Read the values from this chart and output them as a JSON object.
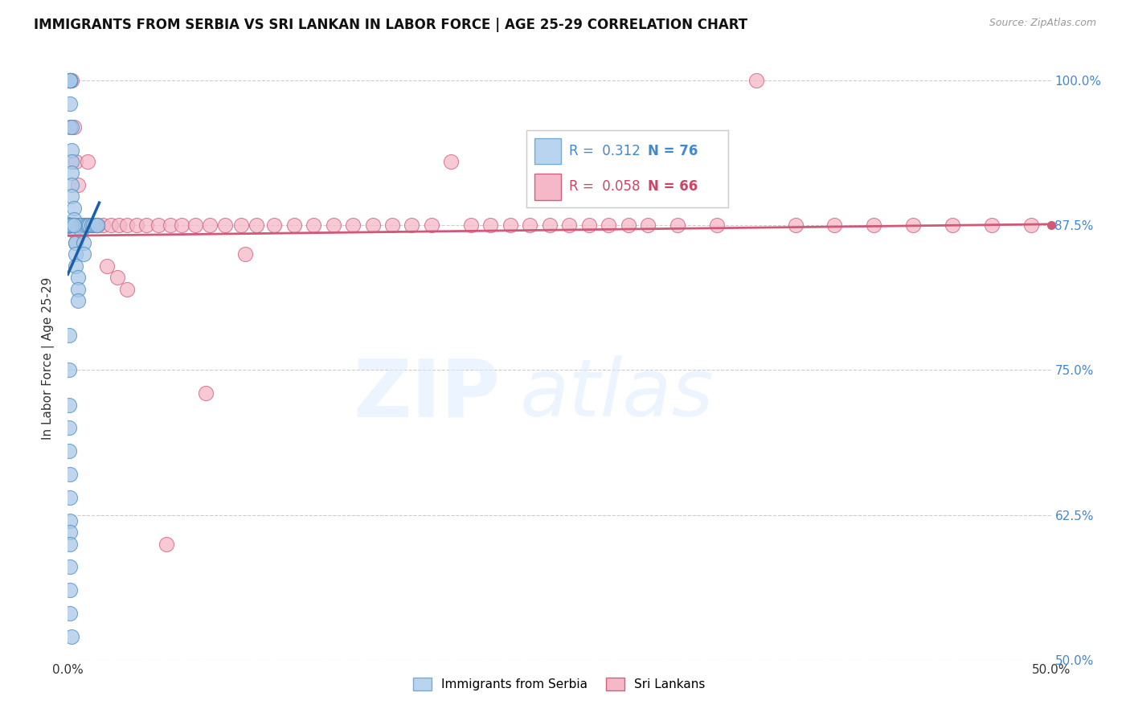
{
  "title": "IMMIGRANTS FROM SERBIA VS SRI LANKAN IN LABOR FORCE | AGE 25-29 CORRELATION CHART",
  "source": "Source: ZipAtlas.com",
  "ylabel": "In Labor Force | Age 25-29",
  "x_min": 0.0,
  "x_max": 0.5,
  "y_min": 0.5,
  "y_max": 1.02,
  "y_ticks": [
    0.5,
    0.625,
    0.75,
    0.875,
    1.0
  ],
  "y_tick_labels": [
    "50.0%",
    "62.5%",
    "75.0%",
    "87.5%",
    "100.0%"
  ],
  "serbia_color": "#a8c8e8",
  "srilanka_color": "#f4b8c8",
  "serbia_edge": "#5090c0",
  "srilanka_edge": "#d06080",
  "trend_serbia_color": "#1a5fa8",
  "trend_srilanka_color": "#d05878",
  "serbia_N": 76,
  "srilanka_N": 66,
  "serbia_R": 0.312,
  "srilanka_R": 0.058,
  "serbia_x": [
    0.001,
    0.001,
    0.001,
    0.001,
    0.001,
    0.001,
    0.001,
    0.001,
    0.002,
    0.002,
    0.002,
    0.002,
    0.002,
    0.002,
    0.003,
    0.003,
    0.003,
    0.003,
    0.003,
    0.004,
    0.004,
    0.004,
    0.004,
    0.005,
    0.005,
    0.005,
    0.006,
    0.006,
    0.007,
    0.007,
    0.008,
    0.008,
    0.009,
    0.01,
    0.01,
    0.011,
    0.012,
    0.013,
    0.014,
    0.015,
    0.0005,
    0.0005,
    0.0005,
    0.0005,
    0.0005,
    0.0005,
    0.0005,
    0.0005,
    0.0005,
    0.0005,
    0.0005,
    0.0005,
    0.0005,
    0.0005,
    0.0005,
    0.0005,
    0.0005,
    0.0005,
    0.0005,
    0.0005,
    0.0005,
    0.0005,
    0.0005,
    0.0005,
    0.0005,
    0.001,
    0.001,
    0.001,
    0.001,
    0.001,
    0.001,
    0.001,
    0.001,
    0.002,
    0.002,
    0.003
  ],
  "serbia_y": [
    1.0,
    1.0,
    1.0,
    1.0,
    1.0,
    1.0,
    0.98,
    0.96,
    0.96,
    0.94,
    0.93,
    0.92,
    0.91,
    0.9,
    0.89,
    0.88,
    0.875,
    0.875,
    0.87,
    0.86,
    0.86,
    0.85,
    0.84,
    0.83,
    0.82,
    0.81,
    0.875,
    0.875,
    0.875,
    0.87,
    0.86,
    0.85,
    0.875,
    0.875,
    0.875,
    0.875,
    0.875,
    0.875,
    0.875,
    0.875,
    0.875,
    0.875,
    0.875,
    0.875,
    0.875,
    0.875,
    0.875,
    0.875,
    0.875,
    0.875,
    0.875,
    0.875,
    0.875,
    0.875,
    0.875,
    0.875,
    0.875,
    0.875,
    0.875,
    0.875,
    0.78,
    0.75,
    0.72,
    0.7,
    0.68,
    0.66,
    0.64,
    0.62,
    0.61,
    0.6,
    0.58,
    0.56,
    0.54,
    0.52,
    0.875,
    0.875
  ],
  "srilanka_x": [
    0.001,
    0.002,
    0.003,
    0.004,
    0.005,
    0.006,
    0.007,
    0.008,
    0.01,
    0.012,
    0.015,
    0.018,
    0.022,
    0.026,
    0.03,
    0.035,
    0.04,
    0.046,
    0.052,
    0.058,
    0.065,
    0.072,
    0.08,
    0.088,
    0.096,
    0.105,
    0.115,
    0.125,
    0.135,
    0.145,
    0.155,
    0.165,
    0.175,
    0.185,
    0.195,
    0.205,
    0.215,
    0.225,
    0.235,
    0.245,
    0.255,
    0.265,
    0.275,
    0.285,
    0.295,
    0.31,
    0.33,
    0.35,
    0.37,
    0.39,
    0.41,
    0.43,
    0.45,
    0.47,
    0.49,
    0.006,
    0.008,
    0.01,
    0.012,
    0.015,
    0.02,
    0.025,
    0.03,
    0.05,
    0.07,
    0.09
  ],
  "srilanka_y": [
    1.0,
    1.0,
    0.96,
    0.93,
    0.91,
    0.875,
    0.875,
    0.875,
    0.875,
    0.875,
    0.875,
    0.875,
    0.875,
    0.875,
    0.875,
    0.875,
    0.875,
    0.875,
    0.875,
    0.875,
    0.875,
    0.875,
    0.875,
    0.875,
    0.875,
    0.875,
    0.875,
    0.875,
    0.875,
    0.875,
    0.875,
    0.875,
    0.875,
    0.875,
    0.93,
    0.875,
    0.875,
    0.875,
    0.875,
    0.875,
    0.875,
    0.875,
    0.875,
    0.875,
    0.875,
    0.875,
    0.875,
    1.0,
    0.875,
    0.875,
    0.875,
    0.875,
    0.875,
    0.875,
    0.875,
    0.875,
    0.875,
    0.93,
    0.875,
    0.875,
    0.84,
    0.83,
    0.82,
    0.6,
    0.73,
    0.85
  ],
  "trend_sl_x0": 0.0,
  "trend_sl_x1": 0.5,
  "trend_sl_y0": 0.866,
  "trend_sl_y1": 0.876,
  "watermark1": "ZIP",
  "watermark2": "atlas",
  "background_color": "#ffffff",
  "grid_color": "#cccccc",
  "legend_r1": "R =  0.312",
  "legend_n1": "N = 76",
  "legend_r2": "R =  0.058",
  "legend_n2": "N = 66",
  "legend_color1": "#4488cc",
  "legend_color2": "#cc4466",
  "dot_87_5_color": "#d05878"
}
